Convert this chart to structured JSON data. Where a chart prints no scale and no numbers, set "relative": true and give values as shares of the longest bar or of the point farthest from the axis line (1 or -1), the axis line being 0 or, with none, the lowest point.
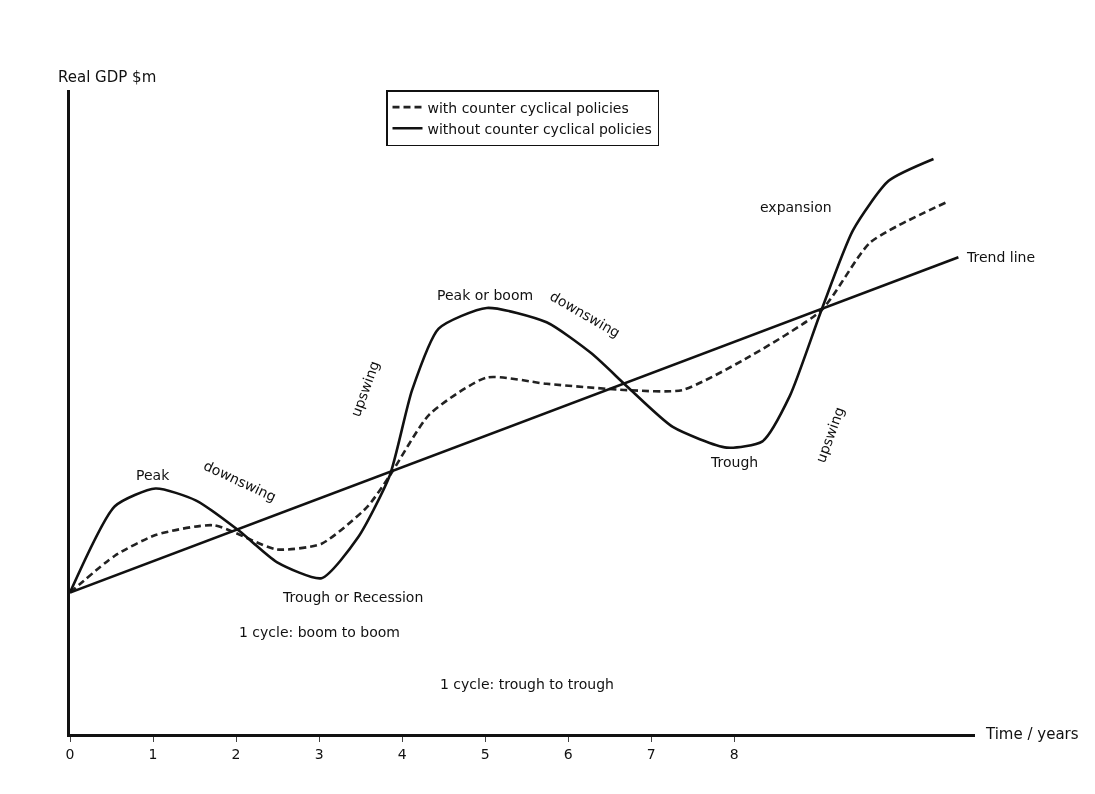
{
  "chart_data": {
    "type": "line",
    "relative": true,
    "xlabel": "Time / years",
    "ylabel": "Real GDP $m",
    "xlim": [
      0,
      10.9
    ],
    "xticks": [
      0,
      1,
      2,
      3,
      4,
      5,
      6,
      7,
      8
    ],
    "grid": false,
    "legend": "top",
    "marker": "none",
    "series": [
      {
        "name": "with counter cyclical policies",
        "color": "#222222",
        "line_style": "dashed",
        "x": [
          0,
          0.54,
          1.03,
          1.73,
          2.49,
          3.03,
          3.58,
          3.85,
          4.33,
          5.02,
          5.74,
          6.72,
          7.37,
          8.13,
          9.05,
          9.64,
          10.56
        ],
        "values": [
          0.246,
          0.31,
          0.346,
          0.363,
          0.321,
          0.331,
          0.395,
          0.449,
          0.556,
          0.62,
          0.609,
          0.598,
          0.598,
          0.652,
          0.737,
          0.855,
          0.925
        ]
      },
      {
        "name": "without counter cyclical policies",
        "color": "#111111",
        "line_style": "solid",
        "x": [
          0,
          0.54,
          1.03,
          1.52,
          2.04,
          2.49,
          3.03,
          3.47,
          3.85,
          4.12,
          4.44,
          5.02,
          5.74,
          6.28,
          6.72,
          7.26,
          7.91,
          8.34,
          8.67,
          9.05,
          9.43,
          9.86,
          10.4
        ],
        "values": [
          0.246,
          0.396,
          0.427,
          0.406,
          0.353,
          0.299,
          0.271,
          0.342,
          0.449,
          0.598,
          0.705,
          0.741,
          0.716,
          0.662,
          0.603,
          0.534,
          0.498,
          0.509,
          0.588,
          0.737,
          0.876,
          0.962,
          1.0
        ]
      },
      {
        "name": "Trend line",
        "color": "#111111",
        "line_style": "solid",
        "x": [
          0,
          10.7
        ],
        "values": [
          0.246,
          0.829
        ]
      }
    ],
    "annotations": [
      {
        "text": "Peak",
        "x": 1,
        "y": 0.427
      },
      "downswing",
      "Trough or Recession",
      "upswing",
      {
        "text": "Peak or boom",
        "x": 5,
        "y": 0.741
      },
      "downswing",
      {
        "text": "Trough",
        "x": 8,
        "y": 0.498
      },
      "upswing",
      "expansion",
      "1 cycle: boom to boom",
      "1 cycle: trough to trough"
    ]
  }
}
